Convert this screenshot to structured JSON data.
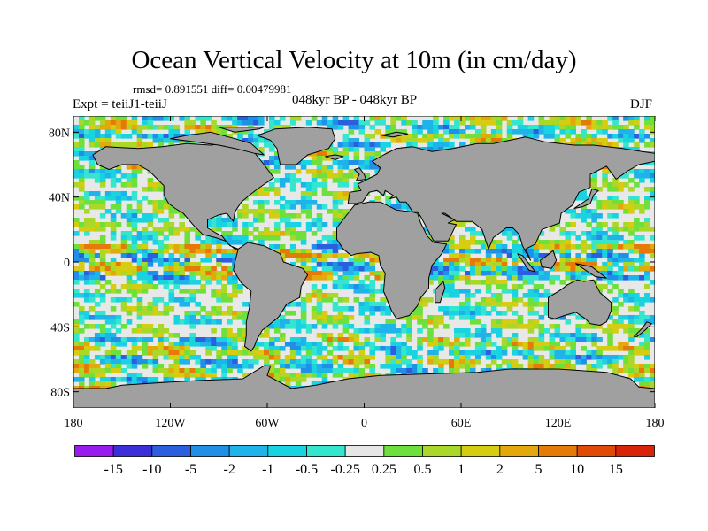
{
  "figure": {
    "title": "Ocean Vertical Velocity at 10m (in cm/day)",
    "stats": "rmsd= 0.891551 diff= 0.00479981",
    "left_label": "Expt = teiiJ1-teiiJ",
    "center_label": "048kyr BP - 048kyr BP",
    "right_label": "DJF"
  },
  "axes": {
    "lat_ticks": [
      "80N",
      "40N",
      "0",
      "40S",
      "80S"
    ],
    "lat_values": [
      80,
      40,
      0,
      -40,
      -80
    ],
    "lon_ticks": [
      "180",
      "120W",
      "60W",
      "0",
      "60E",
      "120E",
      "180"
    ],
    "lon_values": [
      -180,
      -120,
      -60,
      0,
      60,
      120,
      180
    ],
    "lat_range": [
      -90,
      90
    ],
    "lon_range": [
      -180,
      180
    ]
  },
  "colors": {
    "land": "#a0a0a0",
    "coastline": "#000000"
  },
  "colorbar": {
    "labels": [
      "-15",
      "-10",
      "-5",
      "-2",
      "-1",
      "-0.5",
      "-0.25",
      "0.25",
      "0.5",
      "1",
      "2",
      "5",
      "10",
      "15"
    ],
    "colors": [
      "#9a1bf0",
      "#3a2fd8",
      "#2b5fe0",
      "#1f8fe8",
      "#1eb4ea",
      "#1ad3e0",
      "#35e6cf",
      "#e6e6e6",
      "#6ee03c",
      "#aad828",
      "#d6cc10",
      "#e2a80c",
      "#e67a08",
      "#e04a06",
      "#d8250a"
    ]
  }
}
